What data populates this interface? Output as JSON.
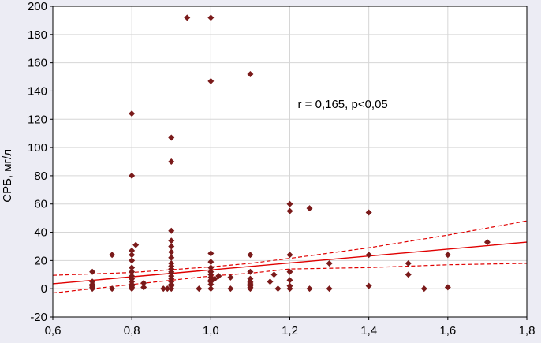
{
  "chart_data": {
    "type": "scatter",
    "title": "",
    "xlabel": "",
    "ylabel": "СРБ, мг/л",
    "xlim": [
      0.6,
      1.8
    ],
    "ylim": [
      -20,
      200
    ],
    "xticks": [
      0.6,
      0.8,
      1.0,
      1.2,
      1.4,
      1.6,
      1.8
    ],
    "xtick_labels": [
      "0,6",
      "0,8",
      "1,0",
      "1,2",
      "1,4",
      "1,6",
      "1,8"
    ],
    "yticks": [
      -20,
      0,
      20,
      40,
      60,
      80,
      100,
      120,
      140,
      160,
      180,
      200
    ],
    "ytick_labels": [
      "-20",
      "0",
      "20",
      "40",
      "60",
      "80",
      "100",
      "120",
      "140",
      "160",
      "180",
      "200"
    ],
    "grid": true,
    "annotation": "r = 0,165, p<0,05",
    "colors": {
      "points": "#7a1a1a",
      "fit_line": "#e00000",
      "background": "#ececf4",
      "plot_area": "#ffffff",
      "grid": "#d6d6d6"
    },
    "points": [
      [
        0.7,
        12
      ],
      [
        0.7,
        5
      ],
      [
        0.7,
        3
      ],
      [
        0.7,
        2
      ],
      [
        0.7,
        1
      ],
      [
        0.7,
        0
      ],
      [
        0.75,
        24
      ],
      [
        0.75,
        0
      ],
      [
        0.8,
        124
      ],
      [
        0.8,
        80
      ],
      [
        0.8,
        27
      ],
      [
        0.8,
        24
      ],
      [
        0.8,
        20
      ],
      [
        0.8,
        15
      ],
      [
        0.8,
        12
      ],
      [
        0.8,
        9
      ],
      [
        0.8,
        7
      ],
      [
        0.8,
        5
      ],
      [
        0.8,
        3
      ],
      [
        0.8,
        2
      ],
      [
        0.8,
        1
      ],
      [
        0.8,
        0
      ],
      [
        0.81,
        31
      ],
      [
        0.83,
        4
      ],
      [
        0.83,
        1
      ],
      [
        0.88,
        0
      ],
      [
        0.89,
        0
      ],
      [
        0.9,
        107
      ],
      [
        0.9,
        90
      ],
      [
        0.9,
        41
      ],
      [
        0.9,
        34
      ],
      [
        0.9,
        30
      ],
      [
        0.9,
        26
      ],
      [
        0.9,
        22
      ],
      [
        0.9,
        18
      ],
      [
        0.9,
        16
      ],
      [
        0.9,
        14
      ],
      [
        0.9,
        12
      ],
      [
        0.9,
        11
      ],
      [
        0.9,
        9
      ],
      [
        0.9,
        7
      ],
      [
        0.9,
        5
      ],
      [
        0.9,
        3
      ],
      [
        0.9,
        2
      ],
      [
        0.9,
        0
      ],
      [
        0.94,
        192
      ],
      [
        0.97,
        0
      ],
      [
        1.0,
        192
      ],
      [
        1.0,
        147
      ],
      [
        1.0,
        25
      ],
      [
        1.0,
        19
      ],
      [
        1.0,
        15
      ],
      [
        1.0,
        12
      ],
      [
        1.0,
        10
      ],
      [
        1.0,
        8
      ],
      [
        1.0,
        6
      ],
      [
        1.0,
        5
      ],
      [
        1.0,
        3
      ],
      [
        1.0,
        0
      ],
      [
        1.01,
        7
      ],
      [
        1.02,
        9
      ],
      [
        1.05,
        8
      ],
      [
        1.05,
        0
      ],
      [
        1.1,
        152
      ],
      [
        1.1,
        24
      ],
      [
        1.1,
        12
      ],
      [
        1.1,
        7
      ],
      [
        1.1,
        5
      ],
      [
        1.1,
        4
      ],
      [
        1.1,
        3
      ],
      [
        1.1,
        2
      ],
      [
        1.1,
        1
      ],
      [
        1.1,
        0
      ],
      [
        1.15,
        5
      ],
      [
        1.16,
        10
      ],
      [
        1.17,
        0
      ],
      [
        1.2,
        60
      ],
      [
        1.2,
        55
      ],
      [
        1.2,
        24
      ],
      [
        1.2,
        12
      ],
      [
        1.2,
        6
      ],
      [
        1.2,
        2
      ],
      [
        1.2,
        0
      ],
      [
        1.25,
        57
      ],
      [
        1.25,
        0
      ],
      [
        1.3,
        18
      ],
      [
        1.3,
        0
      ],
      [
        1.4,
        54
      ],
      [
        1.4,
        24
      ],
      [
        1.4,
        2
      ],
      [
        1.5,
        18
      ],
      [
        1.5,
        10
      ],
      [
        1.54,
        0
      ],
      [
        1.6,
        24
      ],
      [
        1.6,
        1
      ],
      [
        1.7,
        33
      ]
    ],
    "fit_line": {
      "x": [
        0.6,
        1.8
      ],
      "y": [
        3.5,
        33
      ]
    },
    "ci_upper": {
      "x": [
        0.6,
        0.8,
        1.0,
        1.1,
        1.2,
        1.4,
        1.6,
        1.8
      ],
      "y": [
        9.5,
        11.5,
        15.5,
        18,
        21.5,
        29,
        38,
        48
      ]
    },
    "ci_lower": {
      "x": [
        0.6,
        0.8,
        1.0,
        1.1,
        1.2,
        1.4,
        1.6,
        1.8
      ],
      "y": [
        -3,
        3,
        9,
        11,
        14,
        15,
        17,
        18
      ]
    }
  }
}
